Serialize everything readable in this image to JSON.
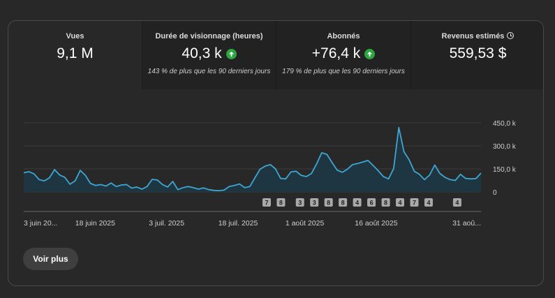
{
  "metrics": [
    {
      "label": "Vues",
      "value": "9,1 M",
      "trend_up": false,
      "note": "",
      "info": false
    },
    {
      "label": "Durée de visionnage (heures)",
      "value": "40,3 k",
      "trend_up": true,
      "note": "143 % de plus que les 90 derniers jours",
      "info": false
    },
    {
      "label": "Abonnés",
      "value": "+76,4 k",
      "trend_up": true,
      "note": "179 % de plus que les 90 derniers jours",
      "info": false
    },
    {
      "label": "Revenus estimés",
      "value": "559,53 $",
      "trend_up": false,
      "note": "",
      "info": true,
      "info_icon": "clock-icon"
    }
  ],
  "colors": {
    "line": "#3ea6d0",
    "area": "#1e3642",
    "up": "#2ba640",
    "badge": "#a9a9a9"
  },
  "chart_data": {
    "type": "area",
    "x_start": "2025-06-03",
    "x_end": "2025-09-07",
    "xtick_labels": [
      "3 juin 20...",
      "18 juin 2025",
      "3 juil. 2025",
      "18 juil. 2025",
      "1 août 2025",
      "16 août 2025",
      "31 aoû..."
    ],
    "xtick_dates": [
      "2025-06-03",
      "2025-06-18",
      "2025-07-03",
      "2025-07-18",
      "2025-08-01",
      "2025-08-16",
      "2025-08-31"
    ],
    "yticks": [
      0,
      150000,
      300000,
      450000
    ],
    "ytick_labels": [
      "0",
      "150,0 k",
      "300,0 k",
      "450,0 k"
    ],
    "ylim": [
      0,
      450000
    ],
    "grid": true,
    "values": [
      125000,
      132000,
      118000,
      80000,
      72000,
      92000,
      145000,
      110000,
      95000,
      50000,
      72000,
      140000,
      108000,
      55000,
      42000,
      48000,
      38000,
      58000,
      35000,
      45000,
      48000,
      25000,
      32000,
      18000,
      35000,
      82000,
      78000,
      48000,
      32000,
      68000,
      15000,
      28000,
      35000,
      28000,
      18000,
      26000,
      15000,
      10000,
      8000,
      12000,
      35000,
      42000,
      52000,
      28000,
      35000,
      92000,
      148000,
      168000,
      178000,
      150000,
      88000,
      85000,
      130000,
      135000,
      108000,
      100000,
      120000,
      182000,
      255000,
      245000,
      192000,
      142000,
      128000,
      148000,
      178000,
      185000,
      195000,
      205000,
      172000,
      138000,
      100000,
      85000,
      152000,
      420000,
      262000,
      210000,
      135000,
      115000,
      80000,
      110000,
      175000,
      120000,
      95000,
      80000,
      75000,
      115000,
      88000,
      85000,
      87000,
      122000
    ],
    "annotations": [
      {
        "date": "2025-07-24",
        "label": "7"
      },
      {
        "date": "2025-07-27",
        "label": "8"
      },
      {
        "date": "2025-07-31",
        "label": "3"
      },
      {
        "date": "2025-08-03",
        "label": "3"
      },
      {
        "date": "2025-08-06",
        "label": "8"
      },
      {
        "date": "2025-08-09",
        "label": "8"
      },
      {
        "date": "2025-08-12",
        "label": "4"
      },
      {
        "date": "2025-08-15",
        "label": "6"
      },
      {
        "date": "2025-08-18",
        "label": "8"
      },
      {
        "date": "2025-08-21",
        "label": "4"
      },
      {
        "date": "2025-08-24",
        "label": "7"
      },
      {
        "date": "2025-08-27",
        "label": "4"
      },
      {
        "date": "2025-09-02",
        "label": "4"
      }
    ]
  },
  "actions": {
    "more_label": "Voir plus"
  }
}
